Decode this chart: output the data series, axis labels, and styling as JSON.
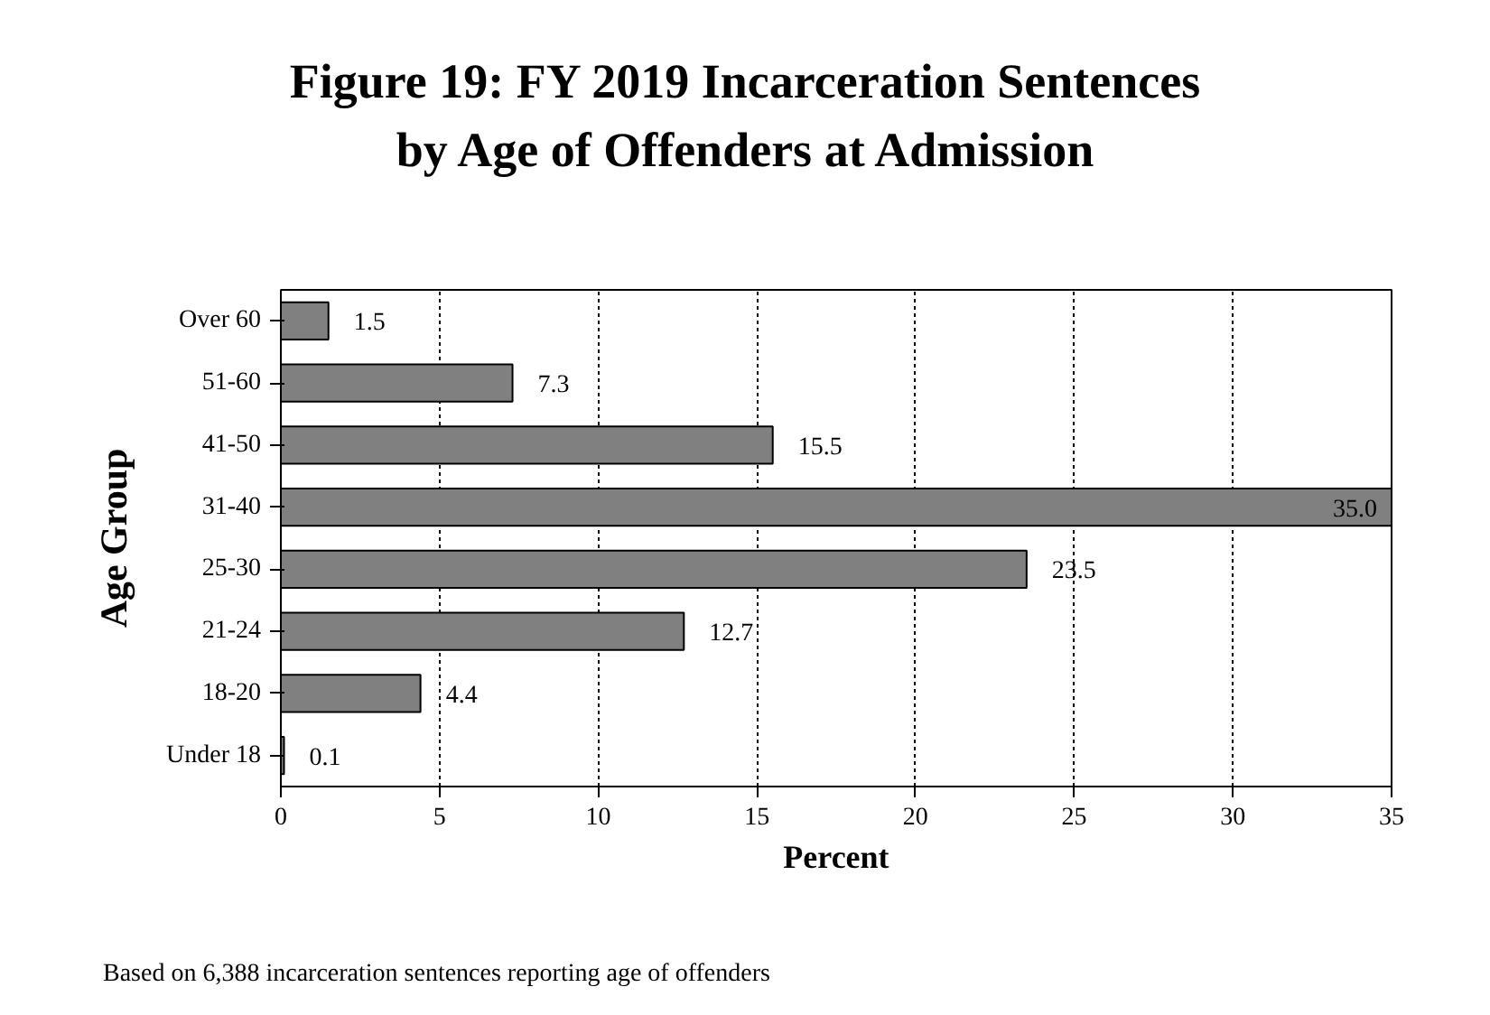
{
  "chart_data": {
    "type": "bar",
    "orientation": "horizontal",
    "title": "Figure 19: FY 2019 Incarceration Sentences\nby Age of Offenders at Admission",
    "xlabel": "Percent",
    "ylabel": "Age Group",
    "categories": [
      "Over 60",
      "51-60",
      "41-50",
      "31-40",
      "25-30",
      "21-24",
      "18-20",
      "Under 18"
    ],
    "values": [
      1.5,
      7.3,
      15.5,
      35.0,
      23.5,
      12.7,
      4.4,
      0.1
    ],
    "value_labels": [
      "1.5",
      "7.3",
      "15.5",
      "35.0",
      "23.5",
      "12.7",
      "4.4",
      "0.1"
    ],
    "color": "#808080",
    "xlim": [
      0,
      35
    ],
    "xticks": [
      0,
      5,
      10,
      15,
      20,
      25,
      30,
      35
    ],
    "grid": "x",
    "annotations": [
      "Based on 6,388 incarceration sentences reporting age of offenders"
    ]
  }
}
